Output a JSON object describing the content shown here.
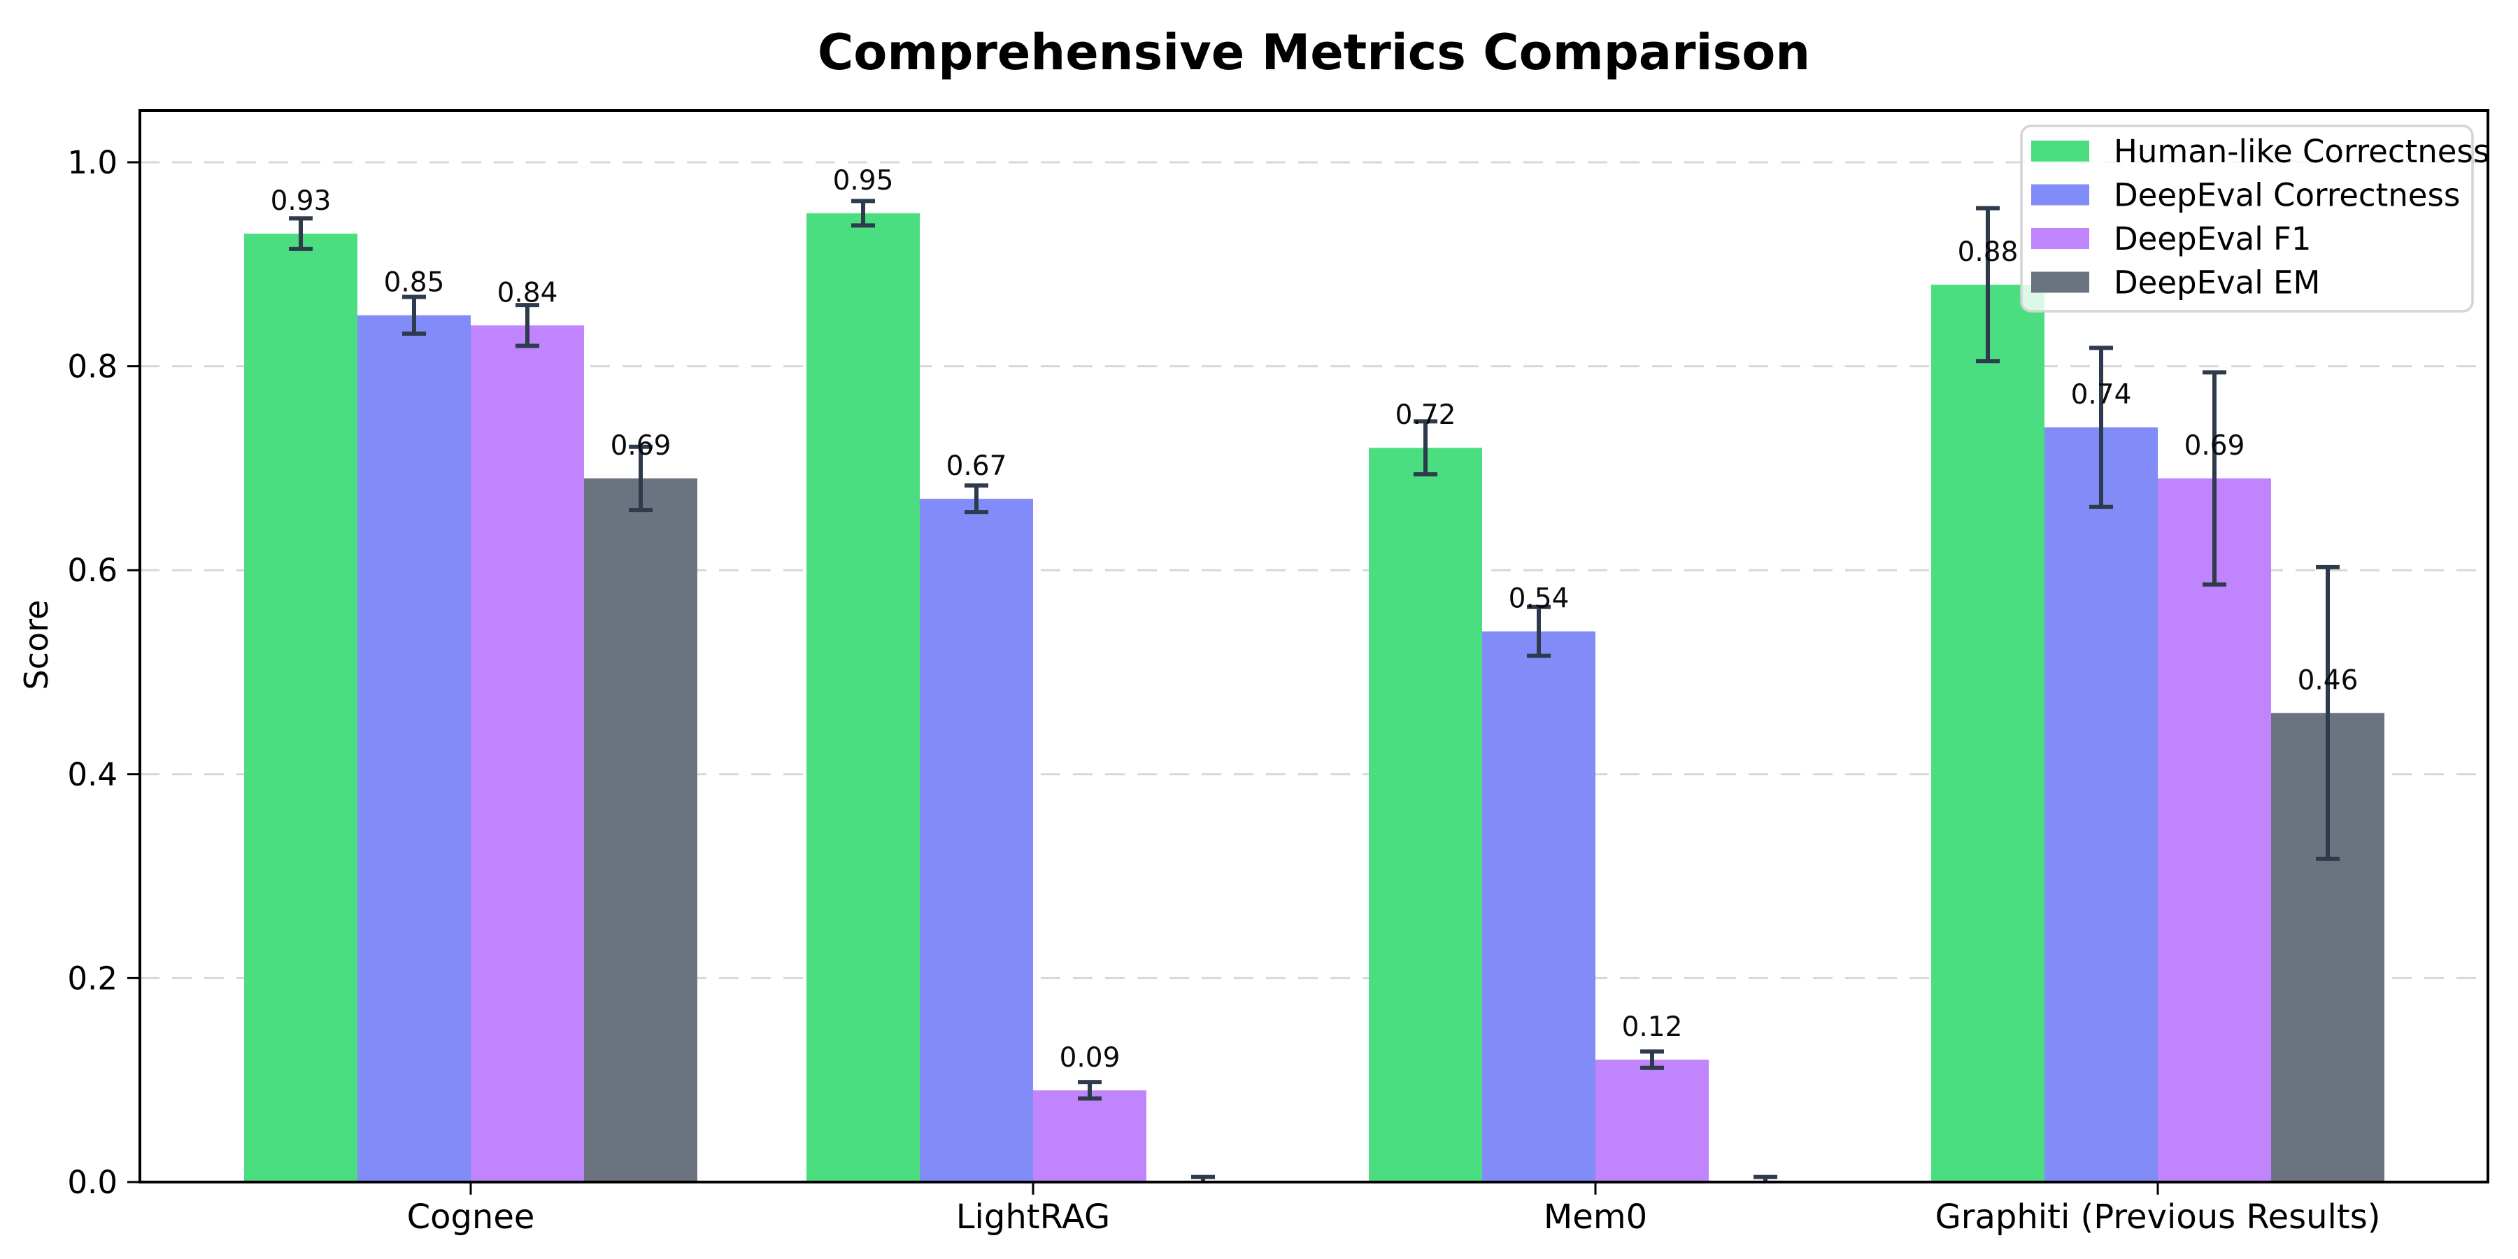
{
  "chart_data": {
    "type": "bar",
    "title": "Comprehensive Metrics Comparison",
    "ylabel": "Score",
    "xlabel": "",
    "categories": [
      "Cognee",
      "LightRAG",
      "Mem0",
      "Graphiti (Previous Results)"
    ],
    "series": [
      {
        "name": "Human-like Correctness",
        "color": "#4ade80",
        "values": [
          0.93,
          0.95,
          0.72,
          0.88
        ],
        "errors": [
          0.015,
          0.012,
          0.026,
          0.075
        ],
        "value_labels": [
          "0.93",
          "0.95",
          "0.72",
          "0.88"
        ]
      },
      {
        "name": "DeepEval Correctness",
        "color": "#818cf8",
        "values": [
          0.85,
          0.67,
          0.54,
          0.74
        ],
        "errors": [
          0.018,
          0.013,
          0.024,
          0.078
        ],
        "value_labels": [
          "0.85",
          "0.67",
          "0.54",
          "0.74"
        ]
      },
      {
        "name": "DeepEval F1",
        "color": "#c084fc",
        "values": [
          0.84,
          0.09,
          0.12,
          0.69
        ],
        "errors": [
          0.02,
          0.008,
          0.008,
          0.104
        ],
        "value_labels": [
          "0.84",
          "0.09",
          "0.12",
          "0.69"
        ]
      },
      {
        "name": "DeepEval EM",
        "color": "#6b7280",
        "values": [
          0.69,
          0.0,
          0.0,
          0.46
        ],
        "errors": [
          0.031,
          0.005,
          0.005,
          0.143
        ],
        "value_labels": [
          "0.69",
          "",
          "",
          "0.46"
        ]
      }
    ],
    "yticks": [
      "0.0",
      "0.2",
      "0.4",
      "0.6",
      "0.8",
      "1.0"
    ],
    "ylim": [
      0,
      1.05
    ],
    "grid": {
      "axis": "y",
      "style": "dashed",
      "color": "#d8d8d8"
    },
    "legend": {
      "position": "upper right",
      "background": "rgba(255,255,255,0.8)",
      "border_color": "#d4d4d4"
    },
    "errorbar_color": "#2e3b4c",
    "bar_label_color": "#0a0a0a",
    "axis_color": "#000000"
  }
}
